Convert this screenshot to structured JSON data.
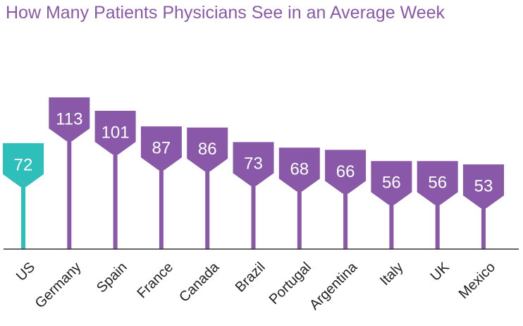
{
  "chart_data": {
    "type": "bar",
    "title": "How Many Patients Physicians See in an Average Week",
    "xlabel": "",
    "ylabel": "",
    "categories": [
      "US",
      "Germany",
      "Spain",
      "France",
      "Canada",
      "Brazil",
      "Portugal",
      "Argentina",
      "Italy",
      "UK",
      "Mexico"
    ],
    "values": [
      72,
      113,
      101,
      87,
      86,
      73,
      68,
      66,
      56,
      56,
      53
    ],
    "highlight_category": "US",
    "colors": {
      "default": "#8a58a8",
      "highlight": "#2ebfba",
      "title": "#8a5aa8"
    },
    "grid": false,
    "legend": "none"
  }
}
